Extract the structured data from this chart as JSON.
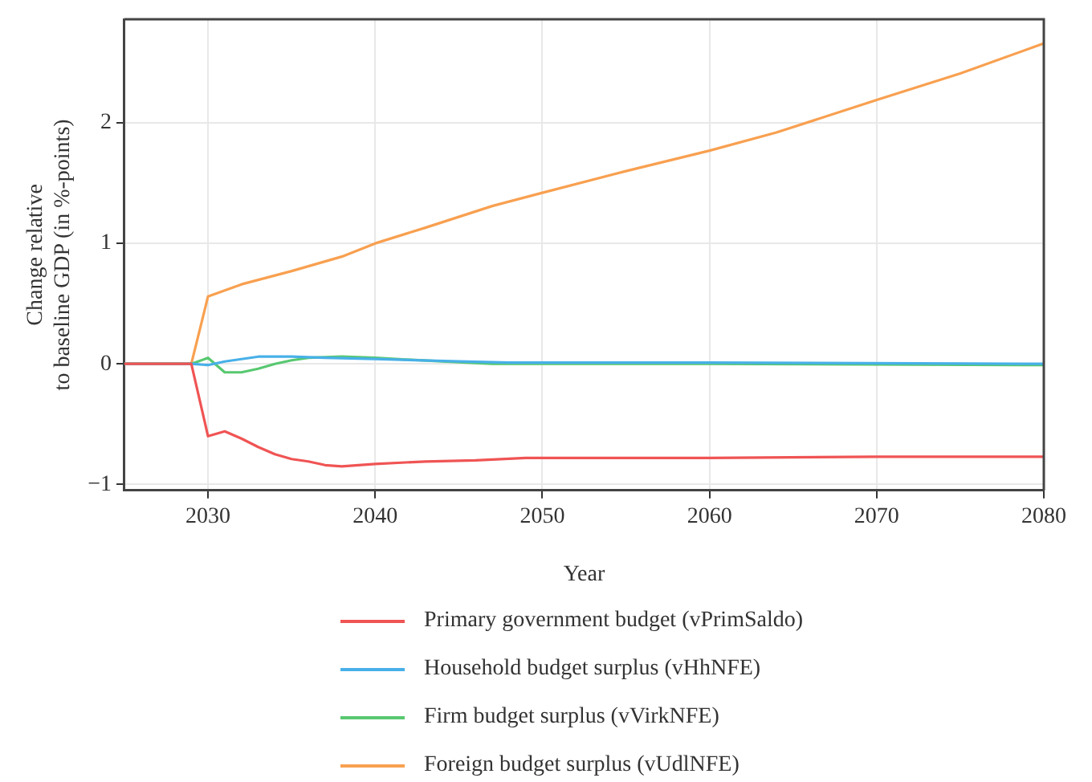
{
  "chart_data": {
    "type": "line",
    "xlabel": "Year",
    "ylabel": "Change relative\nto baseline GDP (in %-points)",
    "xlim": [
      2025,
      2080
    ],
    "xticks": [
      2030,
      2040,
      2050,
      2060,
      2070,
      2080
    ],
    "ylim": [
      -1.05,
      2.86
    ],
    "yticks": [
      -1,
      0,
      1,
      2
    ],
    "grid": true,
    "legend": "bottom",
    "marker": "none",
    "line_style": "solid",
    "series": [
      {
        "name": "Primary government budget (vPrimSaldo)",
        "color": "#f05454",
        "x": [
          2025,
          2029,
          2030,
          2031,
          2032,
          2033,
          2034,
          2035,
          2036,
          2037,
          2038,
          2040,
          2043,
          2046,
          2049,
          2060,
          2070,
          2080
        ],
        "values": [
          0,
          0,
          -0.6,
          -0.56,
          -0.62,
          -0.69,
          -0.75,
          -0.79,
          -0.81,
          -0.84,
          -0.85,
          -0.83,
          -0.81,
          -0.8,
          -0.78,
          -0.78,
          -0.77,
          -0.77
        ]
      },
      {
        "name": "Household budget surplus (vHhNFE)",
        "color": "#48b0e8",
        "x": [
          2025,
          2029,
          2030,
          2031,
          2032,
          2033,
          2034,
          2035,
          2037,
          2040,
          2045,
          2048,
          2060,
          2080
        ],
        "values": [
          0,
          0,
          -0.01,
          0.02,
          0.04,
          0.06,
          0.06,
          0.06,
          0.05,
          0.04,
          0.02,
          0.01,
          0.01,
          0
        ]
      },
      {
        "name": "Firm budget surplus (vVirkNFE)",
        "color": "#58c870",
        "x": [
          2025,
          2029,
          2030,
          2031,
          2032,
          2033,
          2034,
          2035,
          2036,
          2038,
          2040,
          2044,
          2047,
          2060,
          2080
        ],
        "values": [
          0,
          0,
          0.05,
          -0.07,
          -0.07,
          -0.04,
          0,
          0.03,
          0.05,
          0.06,
          0.05,
          0.02,
          0,
          0,
          -0.01
        ]
      },
      {
        "name": "Foreign budget surplus (vUdlNFE)",
        "color": "#f8a050",
        "x": [
          2025,
          2029,
          2030,
          2031,
          2032,
          2035,
          2038,
          2040,
          2043,
          2047,
          2050,
          2055,
          2060,
          2064,
          2070,
          2075,
          2080
        ],
        "values": [
          0,
          0,
          0.56,
          0.61,
          0.66,
          0.77,
          0.89,
          1.0,
          1.13,
          1.31,
          1.42,
          1.6,
          1.77,
          1.92,
          2.19,
          2.41,
          2.66
        ]
      }
    ]
  }
}
